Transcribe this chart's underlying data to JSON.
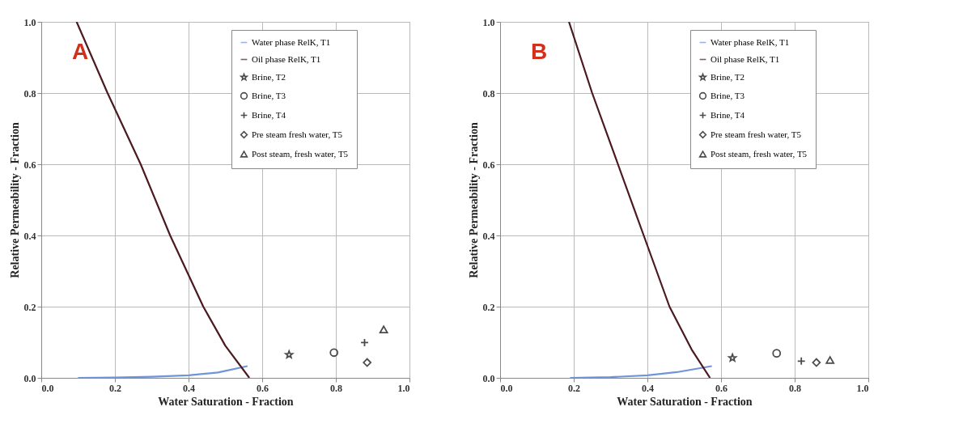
{
  "chart_data": [
    {
      "type": "line",
      "xlabel": "Water Saturation - Fraction",
      "ylabel": "Relative Permeability - Fraction",
      "annotations": [
        "A"
      ],
      "xlim": [
        0,
        1
      ],
      "ylim": [
        0,
        1
      ],
      "xticks": [
        {
          "value": 0,
          "label": "0.0"
        },
        {
          "value": 0.2,
          "label": "0.2"
        },
        {
          "value": 0.4,
          "label": "0.4"
        },
        {
          "value": 0.6,
          "label": "0.6"
        },
        {
          "value": 0.8,
          "label": "0.8"
        },
        {
          "value": 1,
          "label": "1.0"
        }
      ],
      "yticks": [
        {
          "value": 0,
          "label": "0.0"
        },
        {
          "value": 0.2,
          "label": "0.2"
        },
        {
          "value": 0.4,
          "label": "0.4"
        },
        {
          "value": 0.6,
          "label": "0.6"
        },
        {
          "value": 0.8,
          "label": "0.8"
        },
        {
          "value": 1,
          "label": "1.0"
        }
      ],
      "grid": true,
      "legend": "top right",
      "series": [
        {
          "name": "Water phase RelK, T1",
          "type": "line",
          "color": "#6f95d8",
          "line_style": "solid",
          "x": [
            0.1,
            0.2,
            0.3,
            0.4,
            0.48,
            0.56
          ],
          "values": [
            0,
            0.001,
            0.003,
            0.007,
            0.015,
            0.033
          ]
        },
        {
          "name": "Oil phase RelK, T1",
          "type": "line",
          "color": "#4a1a1f",
          "line_style": "solid",
          "x": [
            0.096,
            0.18,
            0.27,
            0.35,
            0.44,
            0.5,
            0.565
          ],
          "values": [
            1,
            0.8,
            0.6,
            0.4,
            0.2,
            0.09,
            0
          ]
        },
        {
          "name": "Brine, T2",
          "type": "scatter",
          "marker": "star",
          "color": "#000000",
          "x": [
            0.673
          ],
          "values": [
            0.065
          ]
        },
        {
          "name": "Brine, T3",
          "type": "scatter",
          "marker": "circle",
          "color": "#000000",
          "x": [
            0.795
          ],
          "values": [
            0.071
          ]
        },
        {
          "name": "Brine, T4",
          "type": "scatter",
          "marker": "cross",
          "color": "#000000",
          "x": [
            0.878
          ],
          "values": [
            0.099
          ]
        },
        {
          "name": "Pre steam fresh water, T5",
          "type": "scatter",
          "marker": "diamond",
          "color": "#000000",
          "x": [
            0.885
          ],
          "values": [
            0.043
          ]
        },
        {
          "name": "Post steam, fresh water, T5",
          "type": "scatter",
          "marker": "triangle",
          "color": "#000000",
          "x": [
            0.93
          ],
          "values": [
            0.136
          ]
        }
      ]
    },
    {
      "type": "line",
      "xlabel": "Water Saturation - Fraction",
      "ylabel": "Relative Permeability - Fraction",
      "annotations": [
        "B"
      ],
      "xlim": [
        0,
        1
      ],
      "ylim": [
        0,
        1
      ],
      "xticks": [
        {
          "value": 0,
          "label": "0.0"
        },
        {
          "value": 0.2,
          "label": "0.2"
        },
        {
          "value": 0.4,
          "label": "0.4"
        },
        {
          "value": 0.6,
          "label": "0.6"
        },
        {
          "value": 0.8,
          "label": "0.8"
        },
        {
          "value": 1,
          "label": "1.0"
        }
      ],
      "yticks": [
        {
          "value": 0,
          "label": "0.0"
        },
        {
          "value": 0.2,
          "label": "0.2"
        },
        {
          "value": 0.4,
          "label": "0.4"
        },
        {
          "value": 0.6,
          "label": "0.6"
        },
        {
          "value": 0.8,
          "label": "0.8"
        },
        {
          "value": 1,
          "label": "1.0"
        }
      ],
      "grid": true,
      "legend": "top right",
      "series": [
        {
          "name": "Water phase RelK, T1",
          "type": "line",
          "color": "#6f95d8",
          "line_style": "solid",
          "x": [
            0.19,
            0.3,
            0.4,
            0.48,
            0.575
          ],
          "values": [
            0,
            0.002,
            0.007,
            0.016,
            0.033
          ]
        },
        {
          "name": "Oil phase RelK, T1",
          "type": "line",
          "color": "#4a1a1f",
          "line_style": "solid",
          "x": [
            0.187,
            0.25,
            0.32,
            0.39,
            0.46,
            0.52,
            0.57
          ],
          "values": [
            1,
            0.8,
            0.6,
            0.4,
            0.2,
            0.08,
            0
          ]
        },
        {
          "name": "Brine, T2",
          "type": "scatter",
          "marker": "star",
          "color": "#000000",
          "x": [
            0.631
          ],
          "values": [
            0.056
          ]
        },
        {
          "name": "Brine, T3",
          "type": "scatter",
          "marker": "circle",
          "color": "#000000",
          "x": [
            0.751
          ],
          "values": [
            0.069
          ]
        },
        {
          "name": "Brine, T4",
          "type": "scatter",
          "marker": "cross",
          "color": "#000000",
          "x": [
            0.818
          ],
          "values": [
            0.047
          ]
        },
        {
          "name": "Pre steam fresh water, T5",
          "type": "scatter",
          "marker": "diamond",
          "color": "#000000",
          "x": [
            0.859
          ],
          "values": [
            0.043
          ]
        },
        {
          "name": "Post steam, fresh water, T5",
          "type": "scatter",
          "marker": "triangle",
          "color": "#000000",
          "x": [
            0.896
          ],
          "values": [
            0.05
          ]
        }
      ]
    }
  ]
}
